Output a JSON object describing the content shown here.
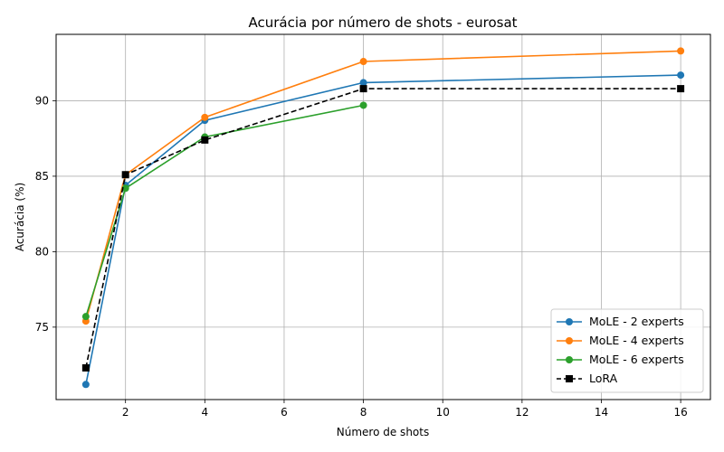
{
  "chart_data": {
    "type": "line",
    "title": "Acurácia por número de shots - eurosat",
    "xlabel": "Número de shots",
    "ylabel": "Acurácia (%)",
    "xlim": [
      0.25,
      16.75
    ],
    "ylim": [
      70.2,
      94.4
    ],
    "xticks": [
      2,
      4,
      6,
      8,
      10,
      12,
      14,
      16
    ],
    "yticks": [
      75,
      80,
      85,
      90
    ],
    "grid": true,
    "legend_position": "lower-right",
    "series": [
      {
        "name": "MoLE - 2 experts",
        "color": "#1f77b4",
        "dash": "solid",
        "marker": "circle",
        "x": [
          1,
          2,
          4,
          8,
          16
        ],
        "y": [
          71.2,
          84.4,
          88.7,
          91.2,
          91.7
        ]
      },
      {
        "name": "MoLE - 4 experts",
        "color": "#ff7f0e",
        "dash": "solid",
        "marker": "circle",
        "x": [
          1,
          2,
          4,
          8,
          16
        ],
        "y": [
          75.4,
          85.1,
          88.9,
          92.6,
          93.3
        ]
      },
      {
        "name": "MoLE - 6 experts",
        "color": "#2ca02c",
        "dash": "solid",
        "marker": "circle",
        "x": [
          1,
          2,
          4,
          8
        ],
        "y": [
          75.7,
          84.2,
          87.6,
          89.7
        ]
      },
      {
        "name": "LoRA",
        "color": "#000000",
        "dash": "dashed",
        "marker": "square",
        "x": [
          1,
          2,
          4,
          8,
          16
        ],
        "y": [
          72.3,
          85.1,
          87.4,
          90.8,
          90.8
        ]
      }
    ]
  }
}
